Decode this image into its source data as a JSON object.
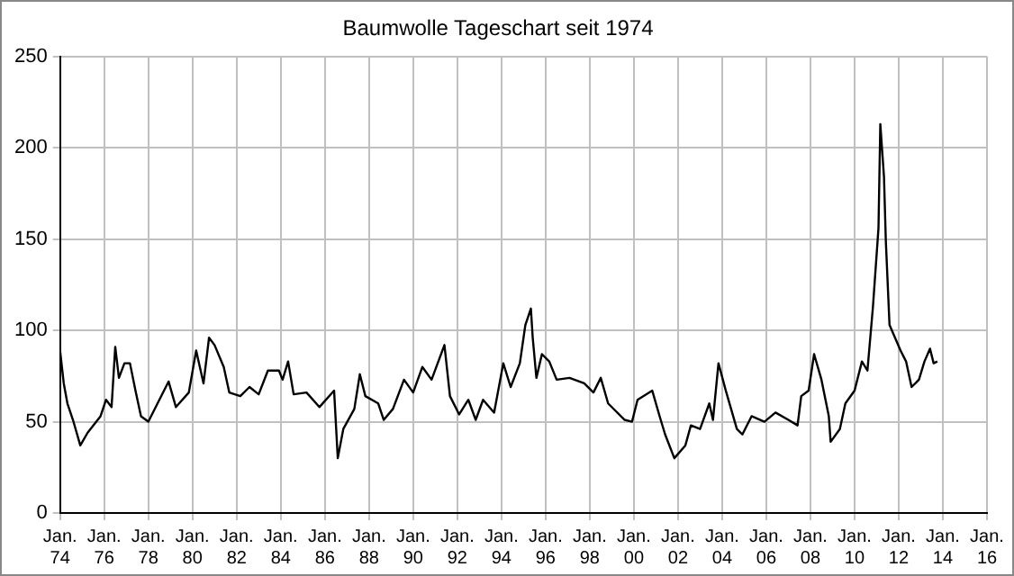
{
  "chart_data": {
    "type": "line",
    "title": "Baumwolle Tageschart seit 1974",
    "x": [
      "1974-01",
      "1974-03",
      "1974-05",
      "1974-08",
      "1974-12",
      "1975-04",
      "1975-11",
      "1976-02",
      "1976-05",
      "1976-07",
      "1976-09",
      "1976-12",
      "1977-03",
      "1977-06",
      "1977-09",
      "1978-01",
      "1978-06",
      "1978-12",
      "1979-04",
      "1979-11",
      "1980-03",
      "1980-07",
      "1980-10",
      "1981-01",
      "1981-06",
      "1981-09",
      "1982-03",
      "1982-08",
      "1983-01",
      "1983-06",
      "1983-12",
      "1984-02",
      "1984-05",
      "1984-08",
      "1985-03",
      "1985-10",
      "1986-06",
      "1986-08",
      "1986-11",
      "1987-05",
      "1987-08",
      "1987-11",
      "1988-06",
      "1988-09",
      "1989-02",
      "1989-08",
      "1990-01",
      "1990-06",
      "1990-11",
      "1991-06",
      "1991-09",
      "1992-02",
      "1992-07",
      "1992-11",
      "1993-03",
      "1993-09",
      "1994-02",
      "1994-06",
      "1994-11",
      "1995-02",
      "1995-05",
      "1995-06",
      "1995-08",
      "1995-11",
      "1996-03",
      "1996-07",
      "1997-02",
      "1997-10",
      "1998-03",
      "1998-07",
      "1998-11",
      "1999-08",
      "1999-12",
      "2000-03",
      "2000-11",
      "2001-03",
      "2001-06",
      "2001-11",
      "2002-05",
      "2002-08",
      "2003-01",
      "2003-06",
      "2003-08",
      "2003-11",
      "2004-03",
      "2004-09",
      "2004-12",
      "2005-05",
      "2005-12",
      "2006-06",
      "2007-01",
      "2007-06",
      "2007-08",
      "2007-12",
      "2008-03",
      "2008-07",
      "2008-11",
      "2008-12",
      "2009-05",
      "2009-08",
      "2010-01",
      "2010-05",
      "2010-08",
      "2010-11",
      "2011-02",
      "2011-03",
      "2011-05",
      "2011-06",
      "2011-08",
      "2011-11",
      "2012-02",
      "2012-05",
      "2012-08",
      "2012-12",
      "2013-03",
      "2013-06",
      "2013-08",
      "2013-10"
    ],
    "series": [
      {
        "color": "#000000",
        "values": [
          89,
          71,
          60,
          51,
          37,
          44,
          53,
          62,
          58,
          91,
          74,
          82,
          82,
          67,
          53,
          50,
          60,
          72,
          58,
          66,
          89,
          71,
          96,
          92,
          80,
          66,
          64,
          69,
          65,
          78,
          78,
          73,
          83,
          65,
          66,
          58,
          67,
          30,
          46,
          57,
          76,
          64,
          60,
          51,
          57,
          73,
          66,
          80,
          73,
          92,
          64,
          54,
          62,
          51,
          62,
          55,
          82,
          69,
          82,
          103,
          112,
          96,
          74,
          87,
          83,
          73,
          74,
          71,
          66,
          74,
          60,
          51,
          50,
          62,
          67,
          53,
          43,
          30,
          37,
          48,
          46,
          60,
          51,
          82,
          67,
          46,
          43,
          53,
          50,
          55,
          51,
          48,
          64,
          67,
          87,
          73,
          53,
          39,
          46,
          60,
          67,
          83,
          78,
          113,
          156,
          213,
          184,
          149,
          103,
          96,
          89,
          83,
          69,
          73,
          83,
          90,
          82,
          83
        ]
      }
    ],
    "xlim": [
      "1974-01",
      "2016-01"
    ],
    "xticks": [
      {
        "value": "1974-01",
        "label": "Jan. 74"
      },
      {
        "value": "1976-01",
        "label": "Jan. 76"
      },
      {
        "value": "1978-01",
        "label": "Jan. 78"
      },
      {
        "value": "1980-01",
        "label": "Jan. 80"
      },
      {
        "value": "1982-01",
        "label": "Jan. 82"
      },
      {
        "value": "1984-01",
        "label": "Jan. 84"
      },
      {
        "value": "1986-01",
        "label": "Jan. 86"
      },
      {
        "value": "1988-01",
        "label": "Jan. 88"
      },
      {
        "value": "1990-01",
        "label": "Jan. 90"
      },
      {
        "value": "1992-01",
        "label": "Jan. 92"
      },
      {
        "value": "1994-01",
        "label": "Jan. 94"
      },
      {
        "value": "1996-01",
        "label": "Jan. 96"
      },
      {
        "value": "1998-01",
        "label": "Jan. 98"
      },
      {
        "value": "2000-01",
        "label": "Jan. 00"
      },
      {
        "value": "2002-01",
        "label": "Jan. 02"
      },
      {
        "value": "2004-01",
        "label": "Jan. 04"
      },
      {
        "value": "2006-01",
        "label": "Jan. 06"
      },
      {
        "value": "2008-01",
        "label": "Jan. 08"
      },
      {
        "value": "2010-01",
        "label": "Jan. 10"
      },
      {
        "value": "2012-01",
        "label": "Jan. 12"
      },
      {
        "value": "2014-01",
        "label": "Jan. 14"
      },
      {
        "value": "2016-01",
        "label": "Jan. 16"
      }
    ],
    "ylim": [
      0,
      250
    ],
    "yticks": [
      0,
      50,
      100,
      150,
      200,
      250
    ],
    "grid": true,
    "legend": false,
    "marker": "none",
    "line_style": "solid"
  }
}
